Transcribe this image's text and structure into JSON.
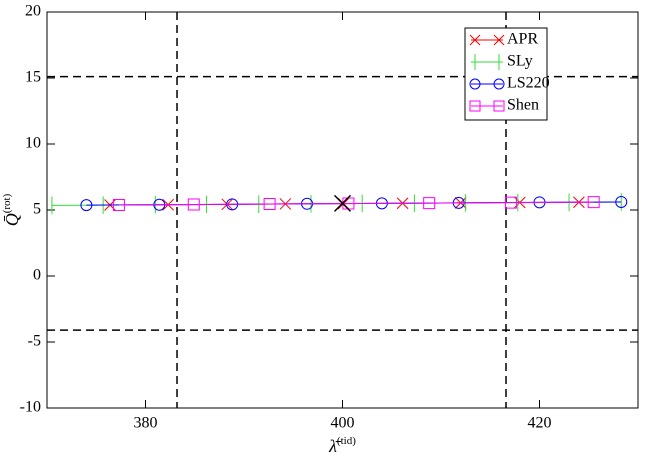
{
  "chart_data": {
    "type": "line",
    "xlabel": "λ̄",
    "xlabel_sup": "(tid)",
    "ylabel": "Q̄",
    "ylabel_sup": "(rot)",
    "xlim": [
      370,
      430
    ],
    "xticks": [
      380,
      400,
      420
    ],
    "ylim": [
      -10,
      20
    ],
    "yticks": [
      -10,
      -5,
      0,
      5,
      10,
      15,
      20
    ],
    "legend": "upper right",
    "series": [
      {
        "name": "APR",
        "color": "#ff0000",
        "marker": "x",
        "x": [
          376.4,
          382.3,
          388.3,
          394.2,
          400.1,
          406.1,
          412.0,
          418.0,
          424.0
        ],
        "values": [
          5.38,
          5.4,
          5.43,
          5.46,
          5.48,
          5.51,
          5.54,
          5.57,
          5.59
        ]
      },
      {
        "name": "SLy",
        "color": "#33dd33",
        "marker": "plus",
        "x": [
          370.5,
          375.7,
          381.0,
          386.2,
          391.5,
          396.8,
          402.0,
          407.3,
          412.5,
          417.8,
          423.0,
          428.3
        ],
        "values": [
          5.35,
          5.37,
          5.4,
          5.42,
          5.44,
          5.47,
          5.49,
          5.51,
          5.54,
          5.56,
          5.58,
          5.61
        ]
      },
      {
        "name": "LS220",
        "color": "#0000ff",
        "marker": "circle",
        "x": [
          374.0,
          381.4,
          388.8,
          396.4,
          404.0,
          411.8,
          420.0,
          428.3
        ],
        "values": [
          5.37,
          5.4,
          5.43,
          5.47,
          5.5,
          5.54,
          5.58,
          5.61
        ]
      },
      {
        "name": "Shen",
        "color": "#ff00ff",
        "marker": "square",
        "x": [
          377.3,
          384.9,
          392.6,
          400.6,
          408.8,
          417.1,
          425.5
        ],
        "values": [
          5.38,
          5.42,
          5.45,
          5.49,
          5.52,
          5.56,
          5.6
        ]
      }
    ],
    "highlight": {
      "x": 400,
      "y": 5.5
    },
    "hlines": [
      15.1,
      -4.1
    ],
    "vlines": [
      383.2,
      416.6
    ]
  }
}
